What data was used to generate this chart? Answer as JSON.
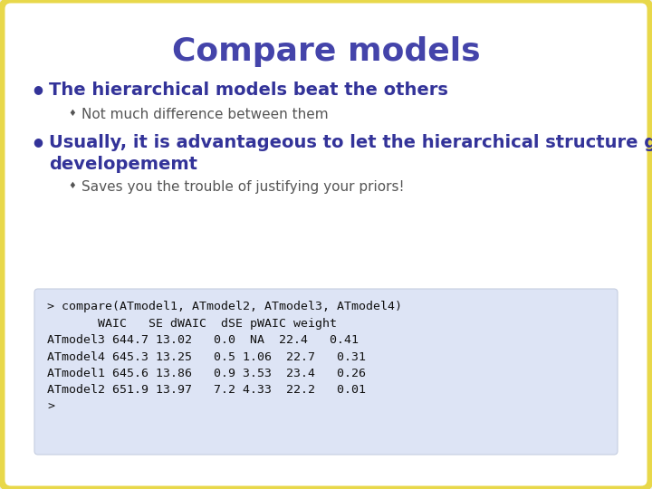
{
  "title": "Compare models",
  "title_color": "#4444aa",
  "title_fontsize": 26,
  "background_color": "#ffffff",
  "border_color": "#e8d84a",
  "border_width": 5,
  "slide_bg": "#f0f0f0",
  "bullet1": "The hierarchical models beat the others",
  "sub_bullet1": "Not much difference between them",
  "bullet2_line1": "Usually, it is advantageous to let the hierarchical structure guide prior",
  "bullet2_line2": "developememt",
  "sub_bullet2": "Saves you the trouble of justifying your priors!",
  "bullet_color": "#333399",
  "bullet_fontsize": 14,
  "sub_bullet_color": "#555555",
  "sub_bullet_fontsize": 11,
  "code_bg": "#dde4f5",
  "code_text": "> compare(ATmodel1, ATmodel2, ATmodel3, ATmodel4)\n       WAIC   SE dWAIC  dSE pWAIC weight\nATmodel3 644.7 13.02   0.0  NA  22.4   0.41\nATmodel4 645.3 13.25   0.5 1.06  22.7   0.31\nATmodel1 645.6 13.86   0.9 3.53  23.4   0.26\nATmodel2 651.9 13.97   7.2 4.33  22.2   0.01\n>",
  "code_fontsize": 9.5
}
